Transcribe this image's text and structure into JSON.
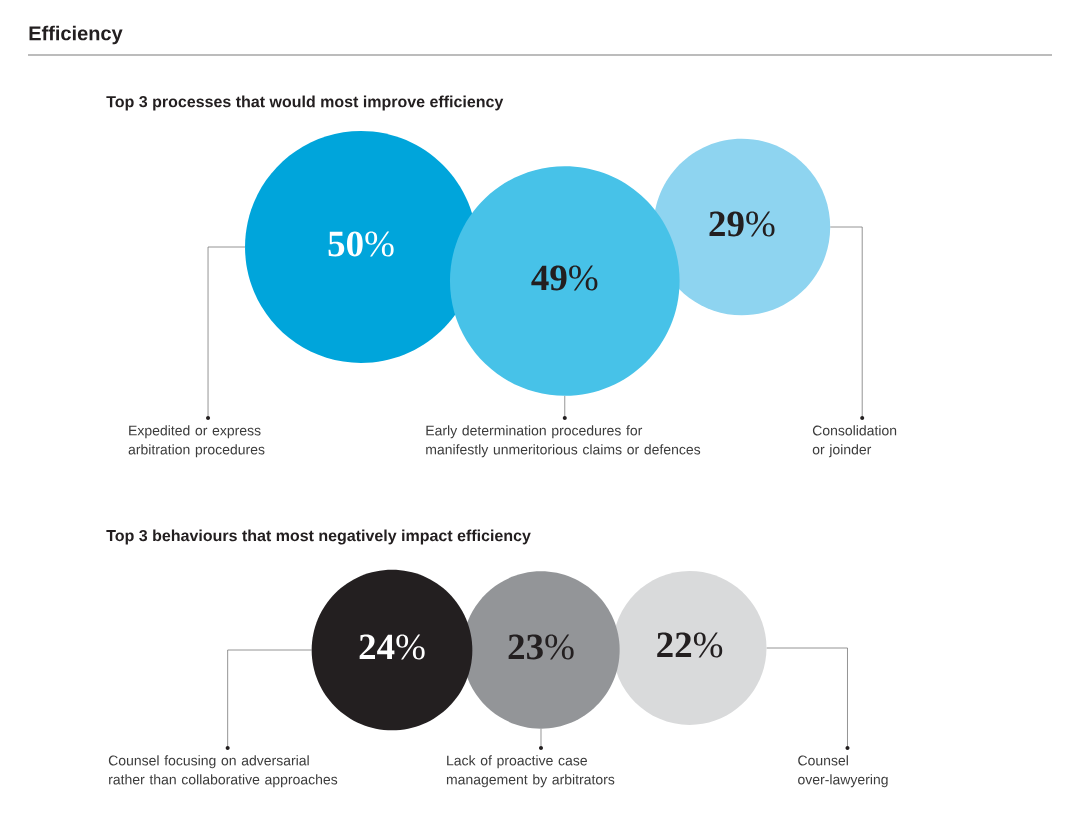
{
  "chart_data": [
    {
      "type": "other",
      "title": "Efficiency",
      "subtitle": "Top 3 processes that would most improve efficiency",
      "categories": [
        "Expedited or express arbitration procedures",
        "Early determination procedures for manifestly unmeritorious claims or defences",
        "Consolidation or joinder"
      ],
      "values": [
        50,
        49,
        29
      ],
      "value_labels": [
        "**50**%",
        "**49**%",
        "**29**%"
      ],
      "colors": [
        "#00a5db",
        "#47c2e8",
        "#8ed4f0"
      ]
    },
    {
      "type": "other",
      "subtitle": "Top 3 behaviours that most negatively impact efficiency",
      "categories": [
        "Counsel focusing on adversarial rather than collaborative approaches",
        "Lack of proactive case management by arbitrators",
        "Counsel over-lawyering"
      ],
      "values": [
        24,
        23,
        22
      ],
      "value_labels": [
        "**24**%",
        "**23**%",
        "**22**%"
      ],
      "colors": [
        "#231f20",
        "#939598",
        "#d9dadb"
      ]
    }
  ]
}
